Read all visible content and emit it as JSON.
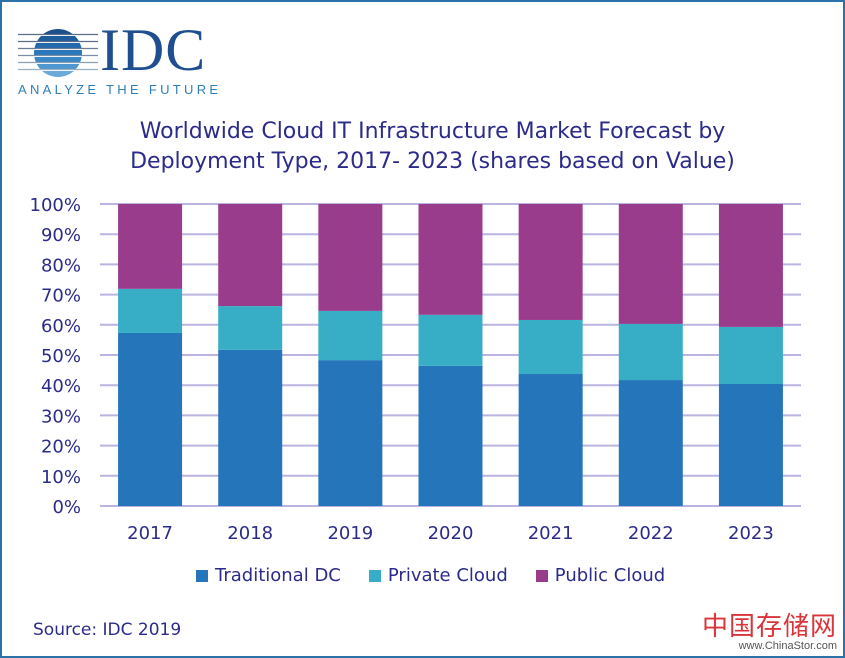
{
  "logo": {
    "wordmark": "IDC",
    "tagline": "ANALYZE THE FUTURE"
  },
  "colors": {
    "traditional_dc": "#2475b9",
    "private_cloud": "#37aec6",
    "public_cloud": "#9a3c8c",
    "grid": "#b9b4e0",
    "text": "#2b2b8a",
    "border": "#2a72a8"
  },
  "chart_data": {
    "type": "bar",
    "stacked": true,
    "percent": true,
    "title": "Worldwide Cloud IT Infrastructure Market Forecast by Deployment Type, 2017- 2023 (shares based on Value)",
    "title_lines": [
      "Worldwide Cloud IT Infrastructure Market Forecast by",
      "Deployment Type, 2017- 2023 (shares based on Value)"
    ],
    "xlabel": "",
    "ylabel": "",
    "categories": [
      "2017",
      "2018",
      "2019",
      "2020",
      "2021",
      "2022",
      "2023"
    ],
    "yticks": [
      "0%",
      "10%",
      "20%",
      "30%",
      "40%",
      "50%",
      "60%",
      "70%",
      "80%",
      "90%",
      "100%"
    ],
    "ylim": [
      0,
      100
    ],
    "grid": true,
    "legend_position": "bottom",
    "series": [
      {
        "name": "Traditional DC",
        "values": [
          57.3,
          51.7,
          48.3,
          46.4,
          43.7,
          41.7,
          40.4
        ]
      },
      {
        "name": "Private Cloud",
        "values": [
          14.6,
          14.5,
          16.3,
          16.9,
          17.9,
          18.6,
          18.9
        ]
      },
      {
        "name": "Public Cloud",
        "values": [
          28.1,
          33.8,
          35.4,
          36.7,
          38.4,
          39.7,
          40.7
        ]
      }
    ]
  },
  "source": "Source: IDC 2019",
  "watermark": {
    "chinese": "中国存储网",
    "url": "www.ChinaStor.com"
  }
}
